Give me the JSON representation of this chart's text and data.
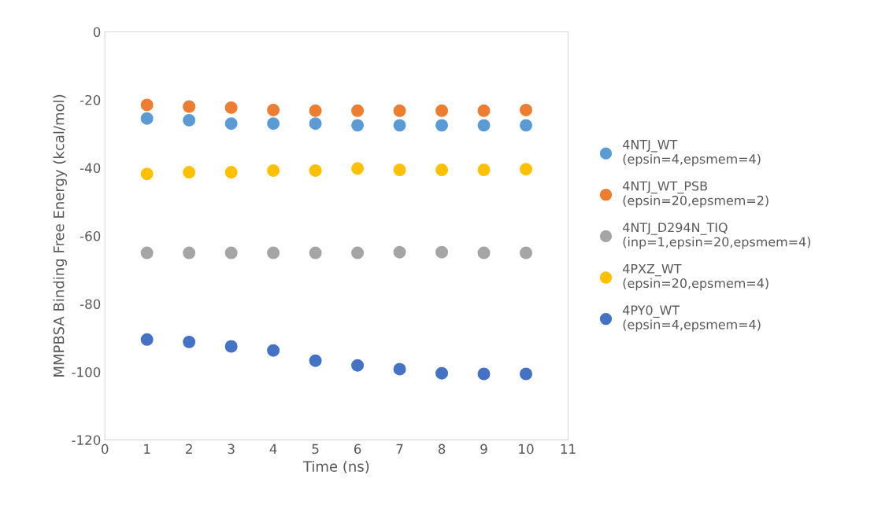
{
  "chart_data": {
    "type": "scatter",
    "xlabel": "Time (ns)",
    "ylabel": "MMPBSA Binding Free Energy (kcal/mol)",
    "x": [
      1,
      2,
      3,
      4,
      5,
      6,
      7,
      8,
      9,
      10
    ],
    "series": [
      {
        "name": "4NTJ_WT\n(epsin=4,epsmem=4)",
        "color": "#5b9bd5",
        "values": [
          -25.5,
          -26,
          -27,
          -27,
          -27,
          -27.5,
          -27.5,
          -27.5,
          -27.5,
          -27.5
        ]
      },
      {
        "name": "4NTJ_WT_PSB\n(epsin=20,epsmem=2)",
        "color": "#ed7d31",
        "values": [
          -21.5,
          -22,
          -22.3,
          -23,
          -23.2,
          -23.2,
          -23.2,
          -23.2,
          -23.2,
          -23
        ]
      },
      {
        "name": "4NTJ_D294N_TIQ\n(inp=1,epsin=20,epsmem=4)",
        "color": "#a5a5a5",
        "values": [
          -65,
          -65,
          -65,
          -65,
          -65,
          -65,
          -64.8,
          -64.8,
          -65,
          -65
        ]
      },
      {
        "name": "4PXZ_WT\n(epsin=20,epsmem=4)",
        "color": "#ffc000",
        "values": [
          -41.8,
          -41.3,
          -41.3,
          -40.8,
          -40.8,
          -40.2,
          -40.6,
          -40.6,
          -40.6,
          -40.4
        ]
      },
      {
        "name": "4PY0_WT\n(epsin=4,epsmem=4)",
        "color": "#4472c4",
        "values": [
          -90.5,
          -91.2,
          -92.5,
          -93.7,
          -96.7,
          -98.1,
          -99.2,
          -100.4,
          -100.6,
          -100.6
        ]
      }
    ],
    "xlim": [
      0,
      11
    ],
    "xticks": [
      0,
      1,
      2,
      3,
      4,
      5,
      6,
      7,
      8,
      9,
      10,
      11
    ],
    "ylim": [
      -120,
      0
    ],
    "yticks": [
      -120,
      -100,
      -80,
      -60,
      -40,
      -20,
      0
    ],
    "marker": "circle",
    "legend": "right",
    "grid": false
  }
}
